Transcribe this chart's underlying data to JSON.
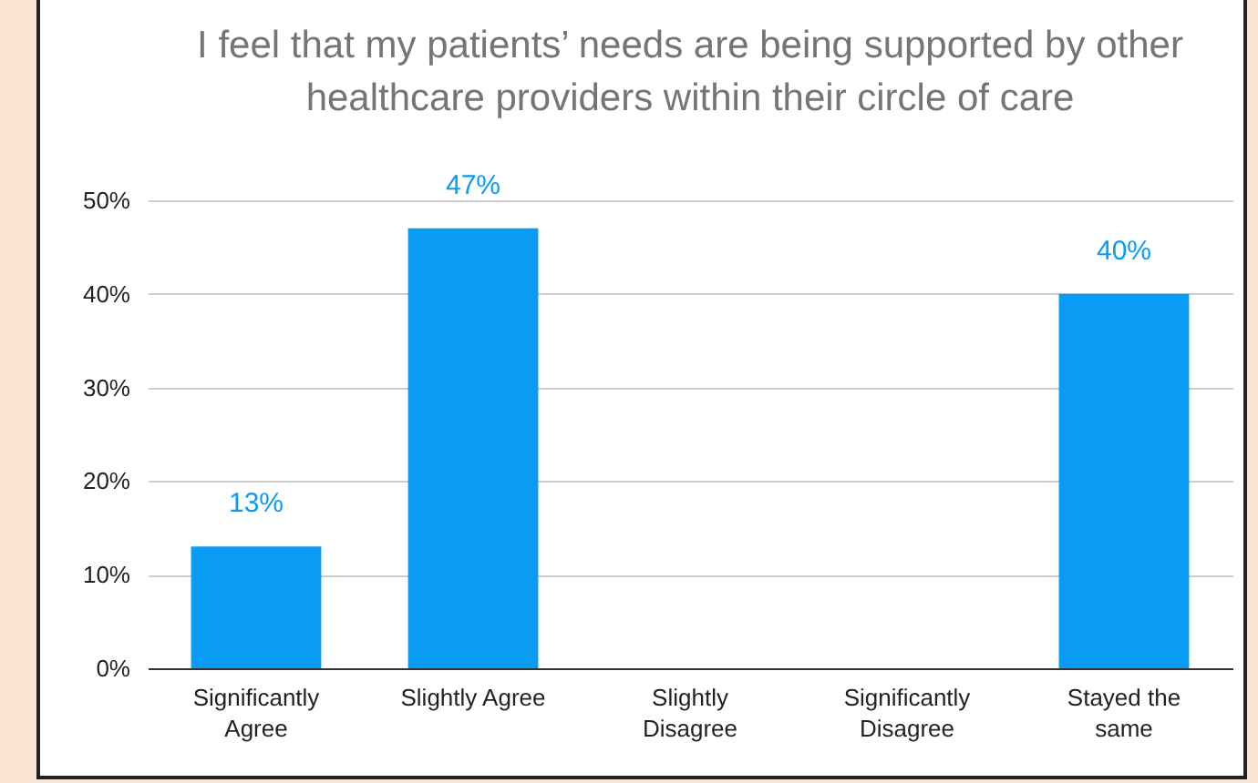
{
  "chart_data": {
    "type": "bar",
    "title": "I feel that my patients’ needs are being supported by other healthcare providers within their circle of care",
    "categories": [
      "Significantly Agree",
      "Slightly Agree",
      "Slightly Disagree",
      "Significantly Disagree",
      "Stayed the same"
    ],
    "values": [
      13,
      47,
      0,
      0,
      40
    ],
    "value_labels": [
      "13%",
      "47%",
      null,
      null,
      "40%"
    ],
    "color": "#0a9cf5",
    "ylim": [
      0,
      50
    ],
    "yticks": [
      {
        "value": 0,
        "label": "0%"
      },
      {
        "value": 10,
        "label": "10%"
      },
      {
        "value": 20,
        "label": "20%"
      },
      {
        "value": 30,
        "label": "30%"
      },
      {
        "value": 40,
        "label": "40%"
      },
      {
        "value": 50,
        "label": "50%"
      }
    ],
    "grid": true
  }
}
